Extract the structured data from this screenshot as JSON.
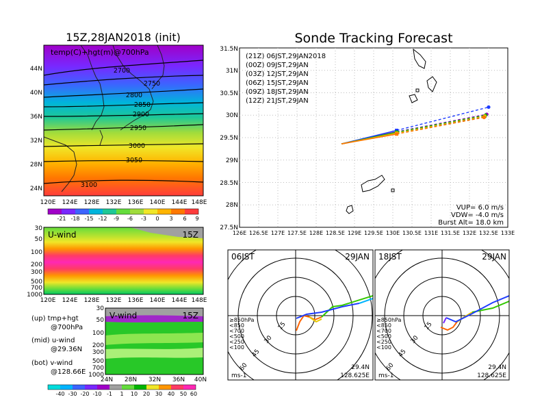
{
  "left": {
    "map_title": "15Z,28JAN2018 (init)",
    "map_label": "temp(C)+hgt(m)@700hPa",
    "lat_ticks": [
      "44N",
      "40N",
      "36N",
      "32N",
      "28N",
      "24N"
    ],
    "lon_ticks": [
      "120E",
      "124E",
      "128E",
      "132E",
      "136E",
      "140E",
      "144E",
      "148E"
    ],
    "contours": [
      "2700",
      "2750",
      "2800",
      "2850",
      "2900",
      "2950",
      "3000",
      "3050",
      "3100"
    ],
    "temp_colorbar": [
      "-21",
      "-18",
      "-15",
      "-12",
      "-9",
      "-6",
      "-3",
      "0",
      "3",
      "6",
      "9"
    ],
    "uwind_label": "U-wind",
    "uwind_time": "15Z",
    "pressure_ticks": [
      "30",
      "50",
      "100",
      "200",
      "300",
      "500",
      "700",
      "1000"
    ],
    "vwind_label": "V-wind",
    "vwind_time": "15Z",
    "vwind_lat_ticks": [
      "24N",
      "28N",
      "32N",
      "36N",
      "40N"
    ],
    "notes": [
      "(up) tmp+hgt",
      "@700hPa",
      "(mid) u-wind",
      "@29.36N",
      "(bot) v-wind",
      "@128.66E"
    ],
    "wind_colorbar": [
      "-40",
      "-30",
      "-20",
      "-10",
      "-1",
      "1",
      "10",
      "20",
      "30",
      "40",
      "50",
      "60"
    ]
  },
  "right": {
    "title": "Sonde Tracking Forecast",
    "legend": [
      {
        "text": "(21Z) 06JST,29JAN2018",
        "color": "#000000"
      },
      {
        "text": "(00Z) 09JST,29JAN",
        "color": "#a000c8"
      },
      {
        "text": "(03Z) 12JST,29JAN",
        "color": "#1e3cff"
      },
      {
        "text": "(06Z) 15JST,29JAN",
        "color": "#00b400"
      },
      {
        "text": "(09Z) 18JST,29JAN",
        "color": "#e6b400"
      },
      {
        "text": "(12Z) 21JST,29JAN",
        "color": "#ff7800"
      }
    ],
    "info": [
      "VUP= 6.0 m/s",
      "VDW= -4.0 m/s",
      "Burst Alt= 18.0 km"
    ],
    "lat_ticks": [
      "31.5N",
      "31N",
      "30.5N",
      "30N",
      "29.5N",
      "29N",
      "28.5N",
      "28N",
      "27.5N"
    ],
    "lon_ticks": [
      "126E",
      "126.5E",
      "127E",
      "127.5E",
      "128E",
      "128.5E",
      "129E",
      "129.5E",
      "130E",
      "130.5E",
      "131E",
      "131.5E",
      "132E",
      "132.5E",
      "133E"
    ],
    "hodo1": {
      "time": "06JST",
      "date": "29JAN",
      "lat": "29.4N",
      "lon": "128.625E",
      "unit": "ms-1"
    },
    "hodo2": {
      "time": "18JST",
      "date": "29JAN",
      "lat": "29.4N",
      "lon": "128.625E",
      "unit": "ms-1"
    },
    "ring_labels": [
      "15",
      "30",
      "45",
      "60"
    ],
    "levels": [
      {
        "text": "≥850hPa",
        "color": "#ff3c00"
      },
      {
        "text": "<850",
        "color": "#ff9600"
      },
      {
        "text": "<700",
        "color": "#e6c800"
      },
      {
        "text": "<500",
        "color": "#32c800"
      },
      {
        "text": "<250",
        "color": "#00b4ff"
      },
      {
        "text": "<100",
        "color": "#1e3cff"
      }
    ]
  },
  "chart_data": [
    {
      "type": "line",
      "title": "Sonde Tracking Forecast",
      "xlim": [
        126,
        133
      ],
      "ylim": [
        27.5,
        31.5
      ],
      "xlabel": "",
      "ylabel": "",
      "series": [
        {
          "name": "(21Z) 06JST,29JAN2018",
          "color": "#000000",
          "x": [
            128.66,
            130.1,
            132.4
          ],
          "y": [
            29.36,
            29.6,
            29.97
          ]
        },
        {
          "name": "(00Z) 09JST,29JAN",
          "color": "#a000c8",
          "x": [
            128.66,
            130.1,
            132.45
          ],
          "y": [
            29.36,
            29.63,
            30.02
          ]
        },
        {
          "name": "(03Z) 12JST,29JAN",
          "color": "#1e3cff",
          "x": [
            128.66,
            130.1,
            132.5
          ],
          "y": [
            29.36,
            29.66,
            30.18
          ]
        },
        {
          "name": "(06Z) 15JST,29JAN",
          "color": "#00b400",
          "x": [
            128.66,
            130.1,
            132.42
          ],
          "y": [
            29.36,
            29.62,
            30.0
          ]
        },
        {
          "name": "(09Z) 18JST,29JAN",
          "color": "#e6b400",
          "x": [
            128.66,
            130.1,
            132.4
          ],
          "y": [
            29.36,
            29.6,
            29.98
          ]
        },
        {
          "name": "(12Z) 21JST,29JAN",
          "color": "#ff7800",
          "x": [
            128.66,
            130.1,
            132.38
          ],
          "y": [
            29.36,
            29.58,
            29.95
          ]
        }
      ]
    }
  ]
}
